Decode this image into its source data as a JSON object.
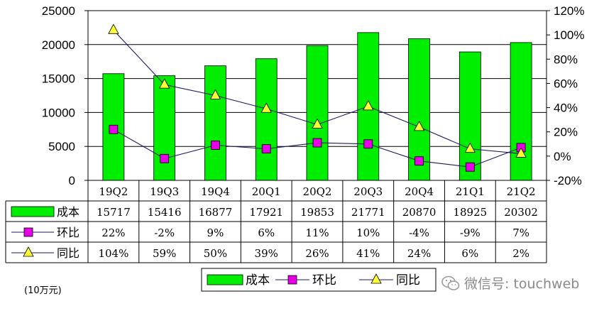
{
  "chart_data": {
    "type": "bar",
    "categories": [
      "19Q2",
      "19Q3",
      "19Q4",
      "20Q1",
      "20Q2",
      "20Q3",
      "20Q4",
      "21Q1",
      "21Q2"
    ],
    "series": [
      {
        "name": "成本",
        "type": "bar",
        "axis": "left",
        "color": "#00ee00",
        "values": [
          15717,
          15416,
          16877,
          17921,
          19853,
          21771,
          20870,
          18925,
          20302
        ]
      },
      {
        "name": "环比",
        "type": "line",
        "axis": "right",
        "color": "#e600e6",
        "marker": "square",
        "values": [
          22,
          -2,
          9,
          6,
          11,
          10,
          -4,
          -9,
          7
        ]
      },
      {
        "name": "同比",
        "type": "line",
        "axis": "right",
        "color": "#ffff33",
        "marker": "triangle",
        "values": [
          104,
          59,
          50,
          39,
          26,
          41,
          24,
          6,
          2
        ]
      }
    ],
    "y_left": {
      "ylim": [
        0,
        25000
      ],
      "ticks": [
        "0",
        "5000",
        "10000",
        "15000",
        "20000",
        "25000"
      ]
    },
    "y_right": {
      "ylim": [
        -20,
        120
      ],
      "ticks": [
        "-20%",
        "0%",
        "20%",
        "40%",
        "60%",
        "80%",
        "100%",
        "120%"
      ]
    },
    "table": {
      "rows": [
        {
          "label": "成本",
          "values": [
            "15717",
            "15416",
            "16877",
            "17921",
            "19853",
            "21771",
            "20870",
            "18925",
            "20302"
          ]
        },
        {
          "label": "环比",
          "values": [
            "22%",
            "-2%",
            "9%",
            "6%",
            "11%",
            "10%",
            "-4%",
            "-9%",
            "7%"
          ]
        },
        {
          "label": "同比",
          "values": [
            "104%",
            "59%",
            "50%",
            "39%",
            "26%",
            "41%",
            "24%",
            "6%",
            "2%"
          ]
        }
      ]
    },
    "legend": {
      "position": "bottom",
      "items": [
        "成本",
        "环比",
        "同比"
      ]
    },
    "grid": true,
    "unit_note": "(10万元)"
  },
  "watermark": {
    "text": "微信号: touchweb",
    "icon": "wechat-icon"
  }
}
